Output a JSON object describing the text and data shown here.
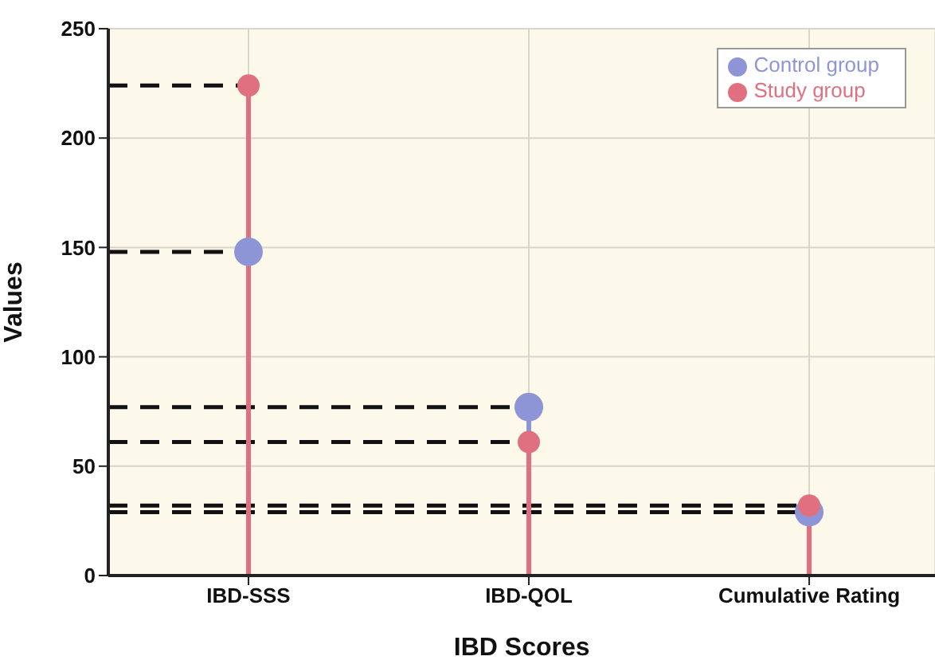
{
  "chart_data": {
    "type": "lollipop",
    "xlabel": "IBD Scores",
    "ylabel": "Values",
    "categories": [
      "IBD-SSS",
      "IBD-QOL",
      "Cumulative Rating"
    ],
    "series": [
      {
        "name": "Control group",
        "color": "#8e95d6",
        "values": [
          148,
          77,
          29
        ]
      },
      {
        "name": "Study group",
        "color": "#e0707f",
        "values": [
          224,
          61,
          32
        ]
      }
    ],
    "ylim": [
      0,
      250
    ],
    "yticks": [
      0,
      50,
      100,
      150,
      200,
      250
    ],
    "grid": true,
    "legend": "top right",
    "marker": "circle",
    "ref_lines": [
      {
        "axis": "y",
        "value": 224,
        "line_style": "dashed",
        "color": "#111111"
      },
      {
        "axis": "y",
        "value": 148,
        "line_style": "dashed",
        "color": "#111111"
      },
      {
        "axis": "y",
        "value": 77,
        "line_style": "dashed",
        "color": "#111111"
      },
      {
        "axis": "y",
        "value": 61,
        "line_style": "dashed",
        "color": "#111111"
      },
      {
        "axis": "y",
        "value": 32,
        "line_style": "dashed",
        "color": "#111111"
      },
      {
        "axis": "y",
        "value": 29,
        "line_style": "dashed",
        "color": "#111111"
      }
    ]
  }
}
